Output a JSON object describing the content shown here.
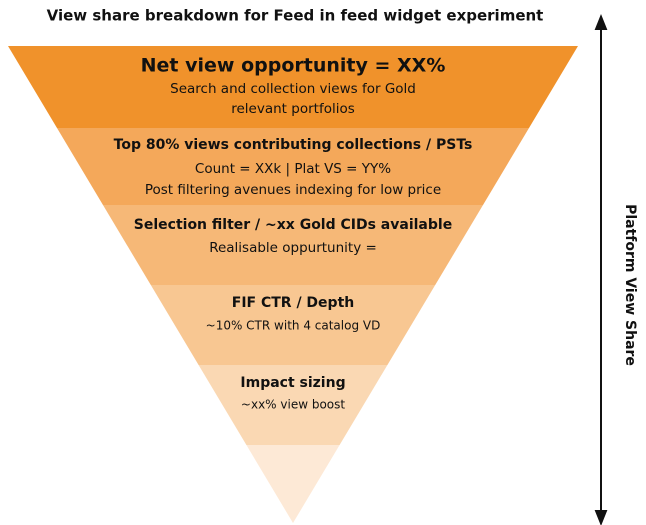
{
  "title": "View share breakdown for Feed in feed widget experiment",
  "levels": [
    {
      "heading": "Net view opportunity = XX%",
      "lines": [
        "Search and collection views for Gold",
        "relevant portfolios"
      ]
    },
    {
      "heading": "Top 80% views contributing collections / PSTs",
      "lines": [
        "Count = XXk | Plat VS = YY%",
        "Post filtering avenues indexing for low price"
      ]
    },
    {
      "heading": "Selection filter / ~xx Gold CIDs available",
      "lines": [
        "Realisable oppurtunity ="
      ]
    },
    {
      "heading": "FIF CTR / Depth",
      "lines": [
        "~10% CTR with 4 catalog VD"
      ]
    },
    {
      "heading": "Impact sizing",
      "lines": [
        "~xx% view boost"
      ]
    }
  ],
  "side_label": "Platform View Share"
}
